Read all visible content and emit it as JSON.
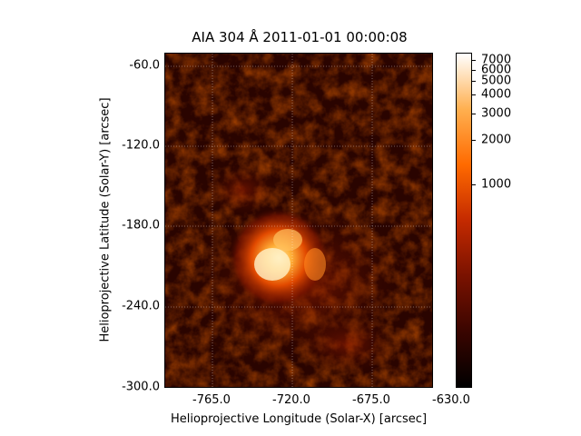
{
  "figure": {
    "title": "AIA 304 Å 2011-01-01 00:00:08",
    "xlabel": "Helioprojective Longitude (Solar-X) [arcsec]",
    "ylabel": "Helioprojective Latitude (Solar-Y) [arcsec]",
    "x_ticks": [
      "-765.0",
      "-720.0",
      "-675.0",
      "-630.0"
    ],
    "y_ticks": [
      "-60.0",
      "-120.0",
      "-180.0",
      "-240.0",
      "-300.0"
    ],
    "colorbar_ticks": [
      "7000",
      "6000",
      "5000",
      "4000",
      "3000",
      "2000",
      "1000"
    ],
    "colormap": [
      "#000000",
      "#3a0500",
      "#7a1200",
      "#c42a00",
      "#ff6a00",
      "#ffb050",
      "#ffffff"
    ]
  }
}
